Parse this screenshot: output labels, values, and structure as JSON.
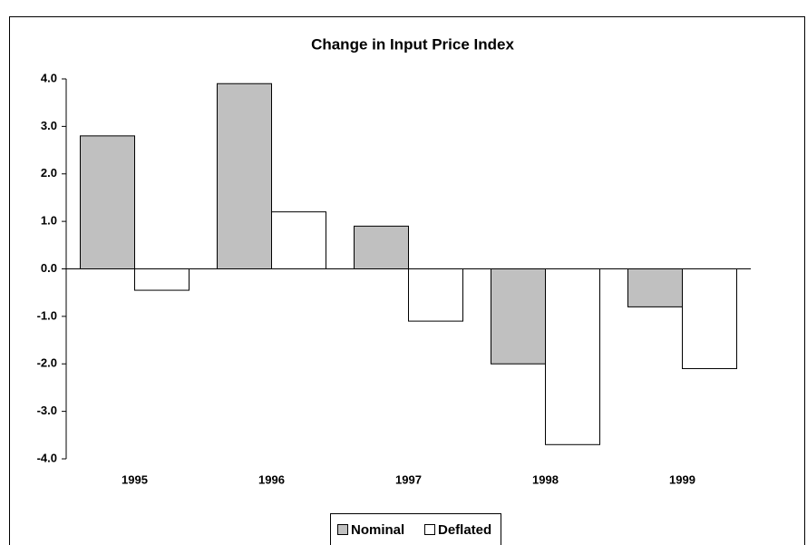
{
  "chart_data": {
    "type": "bar",
    "title": "Change in Input Price Index",
    "categories": [
      "1995",
      "1996",
      "1997",
      "1998",
      "1999"
    ],
    "series": [
      {
        "name": "Nominal",
        "color": "#c0c0c0",
        "values": [
          2.8,
          3.9,
          0.9,
          -2.0,
          -0.8
        ]
      },
      {
        "name": "Deflated",
        "color": "#ffffff",
        "values": [
          -0.45,
          1.2,
          -1.1,
          -3.7,
          -2.1
        ]
      }
    ],
    "ylim": [
      -4,
      4
    ],
    "yticks": [
      {
        "value": 4,
        "label": "4.0"
      },
      {
        "value": 3,
        "label": "3.0"
      },
      {
        "value": 2,
        "label": "2.0"
      },
      {
        "value": 1,
        "label": "1.0"
      },
      {
        "value": 0,
        "label": "0.0"
      },
      {
        "value": -1,
        "label": "-1.0"
      },
      {
        "value": -2,
        "label": "-2.0"
      },
      {
        "value": -3,
        "label": "-3.0"
      },
      {
        "value": -4,
        "label": "-4.0"
      }
    ],
    "grid": false,
    "legend": "bottom"
  }
}
